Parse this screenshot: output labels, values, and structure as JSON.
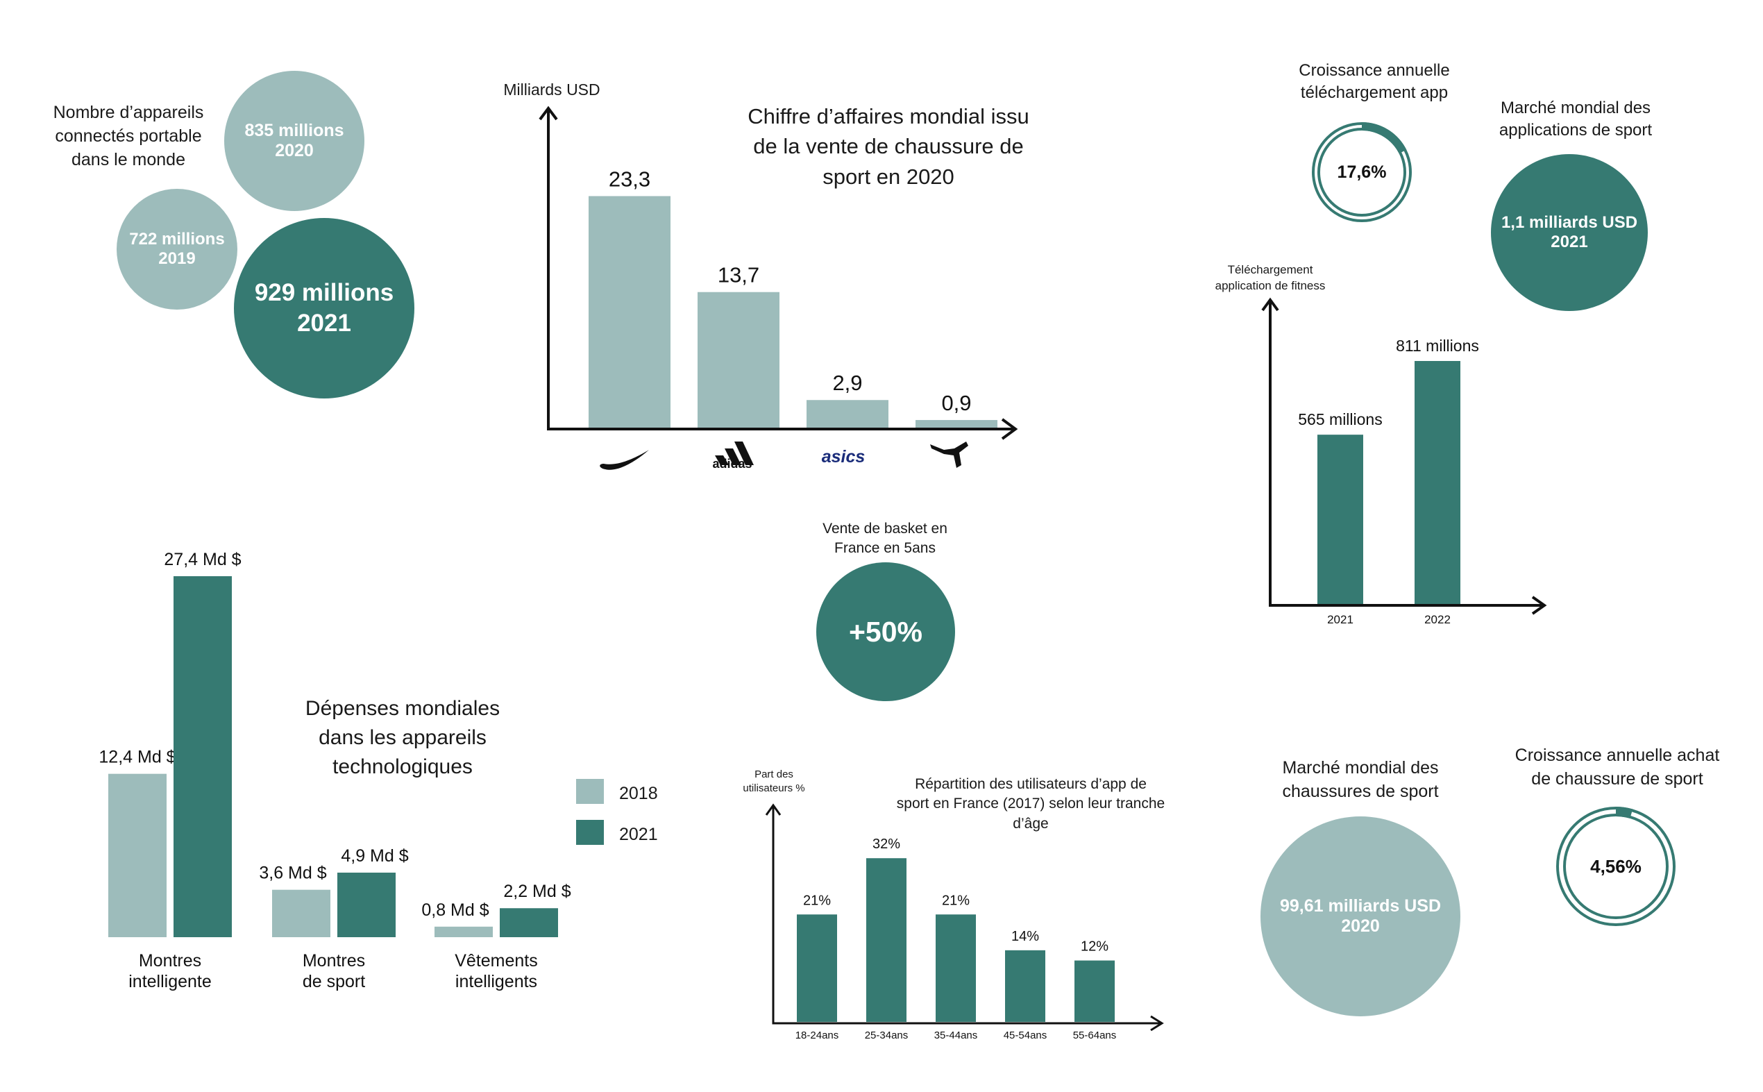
{
  "colors": {
    "light": "#9dbcbb",
    "dark": "#367a72",
    "axis": "#111111"
  },
  "devices": {
    "label": "Nombre d’appareils\nconnectés portable\ndans le monde",
    "bubbles": [
      {
        "value": "835 millions",
        "year": "2020"
      },
      {
        "value": "722 millions",
        "year": "2019"
      },
      {
        "value": "929 millions",
        "year": "2021"
      }
    ]
  },
  "shoes_revenue": {
    "ylabel": "Milliards USD",
    "title": "Chiffre d’affaires mondial issu\nde la vente de chaussure de\nsport en 2020",
    "brand_logos": [
      "nike-logo",
      "adidas-logo",
      "asics-logo",
      "puma-logo"
    ],
    "brand_texts": {
      "adidas": "adidas",
      "asics": "asics"
    }
  },
  "app_growth": {
    "label": "Croissance annuelle\ntéléchargement app",
    "value": "17,6%",
    "fraction": 0.176
  },
  "app_market": {
    "label": "Marché mondial des\napplications de sport",
    "value": "1,1 milliards USD",
    "year": "2021"
  },
  "fitness_downloads": {
    "ylabel": "Téléchargement\napplication de fitness"
  },
  "basket_sales": {
    "label": "Vente de basket en\nFrance en 5ans",
    "value": "+50%"
  },
  "spending": {
    "title": "Dépenses mondiales\ndans les appareils\ntechnologiques",
    "legend": [
      {
        "name": "2018",
        "color": "#9dbcbb"
      },
      {
        "name": "2021",
        "color": "#367a72"
      }
    ]
  },
  "age_distribution": {
    "ylabel": "Part des\nutilisateurs %",
    "title": "Répartition des utilisateurs d’app de\nsport en France (2017) selon leur tranche\nd’âge"
  },
  "shoes_market": {
    "label": "Marché mondial des\nchaussures de sport",
    "value": "99,61 milliards USD",
    "year": "2020"
  },
  "shoes_growth": {
    "label": "Croissance annuelle achat\nde chaussure de sport",
    "value": "4,56%",
    "fraction": 0.0456
  },
  "chart_data": [
    {
      "type": "bar",
      "title": "Chiffre d’affaires mondial issu de la vente de chaussure de sport en 2020",
      "ylabel": "Milliards USD",
      "categories": [
        "Nike",
        "Adidas",
        "Asics",
        "Puma"
      ],
      "values": [
        23.3,
        13.7,
        2.9,
        0.9
      ],
      "labels": [
        "23,3",
        "13,7",
        "2,9",
        "0,9"
      ],
      "ylim": [
        0,
        25
      ]
    },
    {
      "type": "bar",
      "ylabel": "Téléchargement application de fitness",
      "categories": [
        "2021",
        "2022"
      ],
      "values": [
        565,
        811
      ],
      "labels": [
        "565 millions",
        "811 millions"
      ],
      "ylim": [
        0,
        950
      ]
    },
    {
      "type": "bar",
      "title": "Dépenses mondiales dans les appareils technologiques",
      "categories": [
        "Montres\nintelligente",
        "Montres\nde sport",
        "Vêtements\nintelligents"
      ],
      "series": [
        {
          "name": "2018",
          "values": [
            12.4,
            3.6,
            0.8
          ],
          "labels": [
            "12,4 Md $",
            "3,6 Md $",
            "0,8 Md $"
          ]
        },
        {
          "name": "2021",
          "values": [
            27.4,
            4.9,
            2.2
          ],
          "labels": [
            "27,4 Md $",
            "4,9 Md $",
            "2,2 Md $"
          ]
        }
      ],
      "ylim": [
        0,
        27.4
      ]
    },
    {
      "type": "bar",
      "title": "Répartition des utilisateurs d’app de sport en France (2017) selon leur tranche d’âge",
      "ylabel": "Part des utilisateurs %",
      "categories": [
        "18-24ans",
        "25-34ans",
        "35-44ans",
        "45-54ans",
        "55-64ans"
      ],
      "values": [
        21,
        32,
        21,
        14,
        12
      ],
      "labels": [
        "21%",
        "32%",
        "21%",
        "14%",
        "12%"
      ],
      "ylim": [
        0,
        38
      ]
    }
  ]
}
